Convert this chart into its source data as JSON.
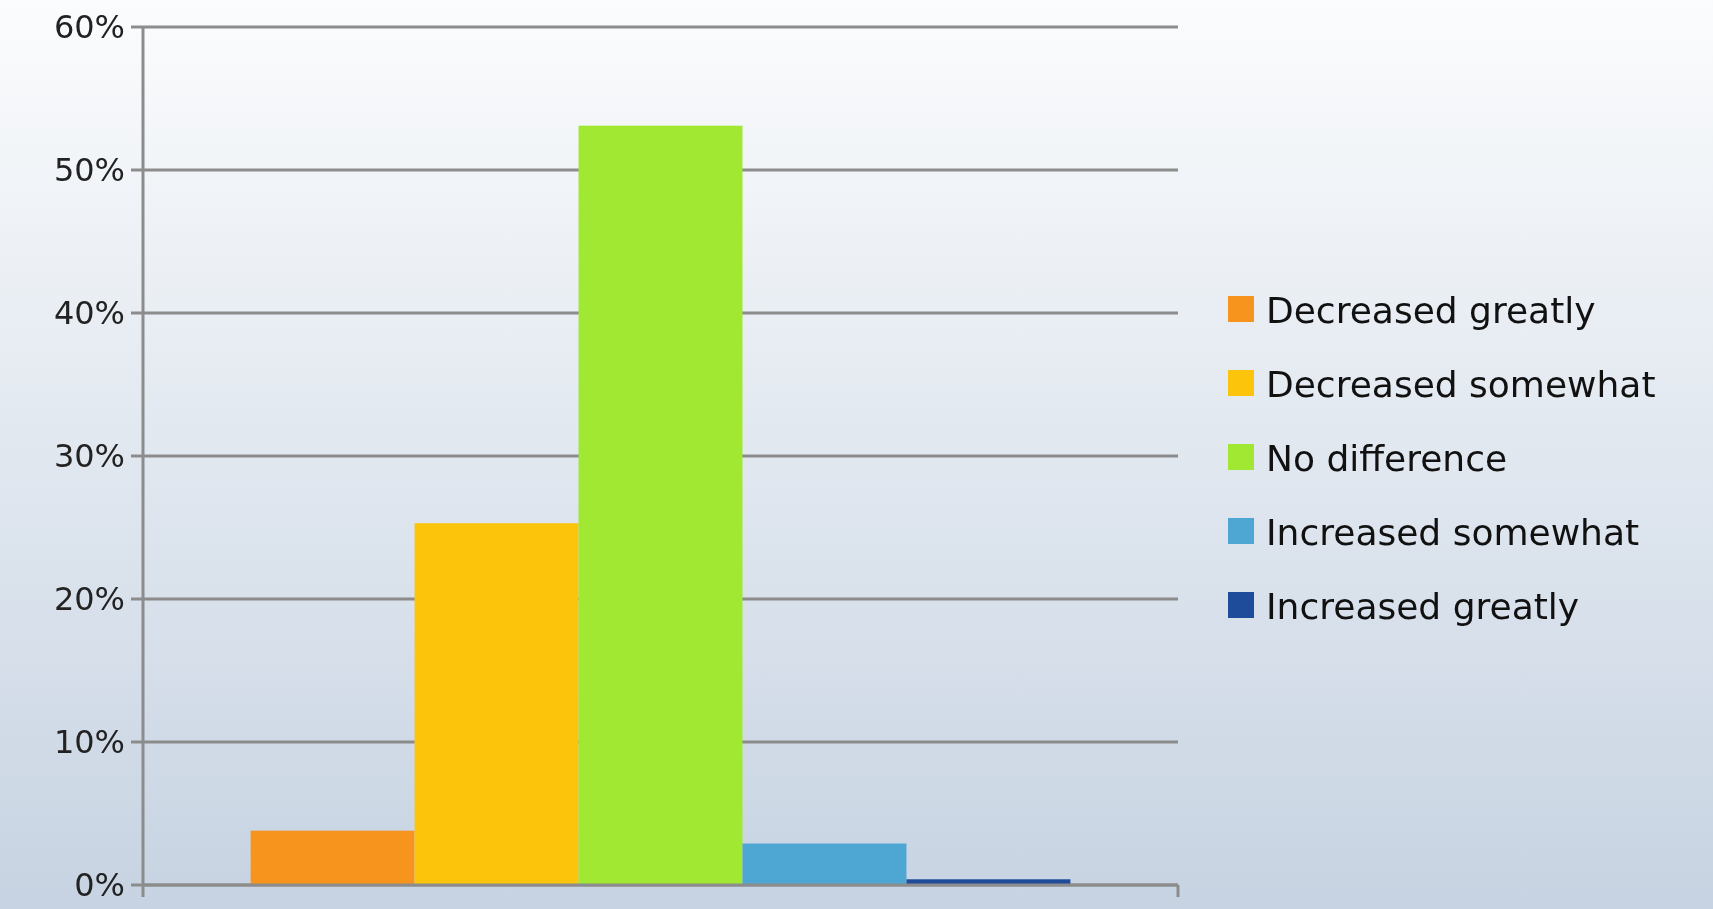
{
  "chart_data": {
    "type": "bar",
    "categories": [
      null
    ],
    "series": [
      {
        "name": "Decreased greatly",
        "color": "#f7941e",
        "values": [
          3.8
        ]
      },
      {
        "name": "Decreased somewhat",
        "color": "#fdc40c",
        "values": [
          25.3
        ]
      },
      {
        "name": "No difference",
        "color": "#a0e832",
        "values": [
          53.1
        ]
      },
      {
        "name": "Increased somewhat",
        "color": "#4ea6d3",
        "values": [
          2.9
        ]
      },
      {
        "name": "Increased greatly",
        "color": "#1f4b9b",
        "values": [
          0.4
        ]
      }
    ],
    "ylim": [
      0,
      60
    ],
    "yticks": [
      {
        "value": 0,
        "label": "0%"
      },
      {
        "value": 10,
        "label": "10%"
      },
      {
        "value": 20,
        "label": "20%"
      },
      {
        "value": 30,
        "label": "30%"
      },
      {
        "value": 40,
        "label": "40%"
      },
      {
        "value": 50,
        "label": "50%"
      },
      {
        "value": 60,
        "label": "60%"
      }
    ],
    "grid": "y",
    "legend": "right"
  }
}
